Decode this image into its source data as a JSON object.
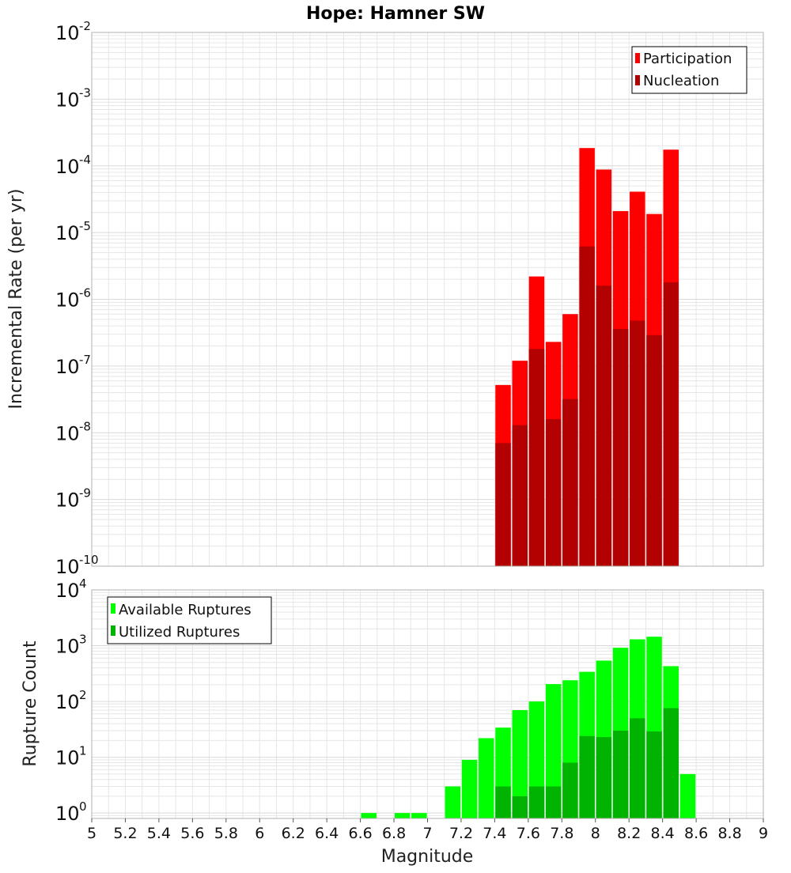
{
  "title": "Hope: Hamner SW",
  "colors": {
    "participation": "#ff0000",
    "nucleation": "#b30000",
    "available": "#00ff00",
    "utilized": "#00b300",
    "grid": "#e6e6e6",
    "frame": "#b0b0b0"
  },
  "chart_data": [
    {
      "type": "bar",
      "name": "rates",
      "ylabel": "Incremental Rate (per yr)",
      "yscale": "log",
      "ylim": [
        1e-10,
        0.01
      ],
      "xlim": [
        5,
        9
      ],
      "grid": true,
      "legend_position": "top-right",
      "y_ticks": [
        {
          "base": "10",
          "exp": "-10"
        },
        {
          "base": "10",
          "exp": "-9"
        },
        {
          "base": "10",
          "exp": "-8"
        },
        {
          "base": "10",
          "exp": "-7"
        },
        {
          "base": "10",
          "exp": "-6"
        },
        {
          "base": "10",
          "exp": "-5"
        },
        {
          "base": "10",
          "exp": "-4"
        },
        {
          "base": "10",
          "exp": "-3"
        },
        {
          "base": "10",
          "exp": "-2"
        }
      ],
      "x": [
        7.45,
        7.55,
        7.65,
        7.75,
        7.85,
        7.95,
        8.05,
        8.15,
        8.25,
        8.35,
        8.45
      ],
      "series": [
        {
          "name": "Participation",
          "values": [
            5.2e-08,
            1.2e-07,
            2.2e-06,
            2.3e-07,
            6e-07,
            0.000185,
            8.8e-05,
            2.1e-05,
            4.1e-05,
            1.9e-05,
            0.000175
          ]
        },
        {
          "name": "Nucleation",
          "values": [
            7e-09,
            1.3e-08,
            1.8e-07,
            1.6e-08,
            3.2e-08,
            6.2e-06,
            1.6e-06,
            3.6e-07,
            4.8e-07,
            2.9e-07,
            1.8e-06
          ]
        }
      ]
    },
    {
      "type": "bar",
      "name": "counts",
      "xlabel": "Magnitude",
      "ylabel": "Rupture Count",
      "yscale": "log",
      "ylim": [
        0.8,
        10000
      ],
      "xlim": [
        5,
        9
      ],
      "grid": true,
      "legend_position": "top-left",
      "y_ticks": [
        {
          "base": "10",
          "exp": "0"
        },
        {
          "base": "10",
          "exp": "1"
        },
        {
          "base": "10",
          "exp": "2"
        },
        {
          "base": "10",
          "exp": "3"
        },
        {
          "base": "10",
          "exp": "4"
        }
      ],
      "x_ticks": [
        "5",
        "5.2",
        "5.4",
        "5.6",
        "5.8",
        "6",
        "6.2",
        "6.4",
        "6.6",
        "6.8",
        "7",
        "7.2",
        "7.4",
        "7.6",
        "7.8",
        "8",
        "8.2",
        "8.4",
        "8.6",
        "8.8",
        "9"
      ],
      "x": [
        6.65,
        6.85,
        6.95,
        7.15,
        7.25,
        7.35,
        7.45,
        7.55,
        7.65,
        7.75,
        7.85,
        7.95,
        8.05,
        8.15,
        8.25,
        8.35,
        8.45,
        8.55
      ],
      "series": [
        {
          "name": "Available Ruptures",
          "values": [
            1,
            1,
            1,
            3,
            9,
            22,
            34,
            70,
            100,
            205,
            240,
            340,
            540,
            920,
            1300,
            1450,
            430,
            5
          ]
        },
        {
          "name": "Utilized Ruptures",
          "values": [
            0,
            0,
            0,
            0,
            0,
            0,
            3,
            2,
            3,
            3,
            8,
            24,
            23,
            30,
            50,
            29,
            76,
            0
          ]
        }
      ]
    }
  ]
}
